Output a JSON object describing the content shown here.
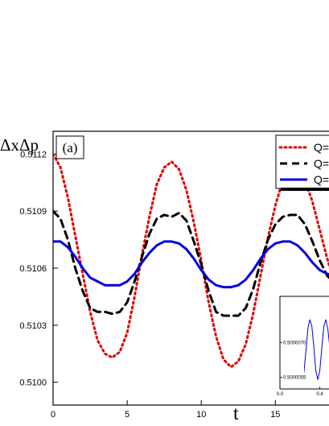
{
  "chart_data": [
    {
      "type": "line",
      "panel_label": "(a)",
      "ylabel": "ΔxΔp",
      "xlabel": "t",
      "xlim": [
        0,
        19
      ],
      "ylim": [
        0.50988,
        0.51132
      ],
      "x_ticks": [
        0,
        5,
        10,
        15
      ],
      "y_ticks": [
        0.51,
        0.5103,
        0.5106,
        0.5109,
        0.5112
      ],
      "y_tick_labels": [
        "0.5100",
        "0.5103",
        "0.5106",
        "0.5109",
        "0.5112"
      ],
      "legend_position": "top-right",
      "series": [
        {
          "name": "Q=",
          "color": "#e00000",
          "style": "dotted",
          "x": [
            0,
            0.5,
            1,
            1.5,
            2,
            2.5,
            3,
            3.5,
            4,
            4.5,
            5,
            5.5,
            6,
            6.5,
            7,
            7.5,
            8,
            8.5,
            9,
            9.5,
            10,
            10.5,
            11,
            11.5,
            12,
            12.5,
            13,
            13.5,
            14,
            14.5,
            15,
            15.5,
            16,
            16.5,
            17,
            17.5,
            18,
            18.5,
            19
          ],
          "y": [
            0.5112,
            0.51113,
            0.51097,
            0.51077,
            0.51057,
            0.51037,
            0.51022,
            0.51015,
            0.51013,
            0.51016,
            0.51026,
            0.51045,
            0.51067,
            0.51087,
            0.51104,
            0.51113,
            0.51116,
            0.51112,
            0.51101,
            0.51084,
            0.51064,
            0.51042,
            0.51024,
            0.51012,
            0.51008,
            0.51011,
            0.5102,
            0.51036,
            0.51056,
            0.51076,
            0.51093,
            0.51106,
            0.51113,
            0.51113,
            0.51106,
            0.51095,
            0.5108,
            0.51065,
            0.51052
          ]
        },
        {
          "name": "Q=",
          "color": "#000000",
          "style": "dashed",
          "x": [
            0,
            0.5,
            1,
            1.5,
            2,
            2.5,
            3,
            3.5,
            4,
            4.5,
            5,
            5.5,
            6,
            6.5,
            7,
            7.5,
            8,
            8.5,
            9,
            9.5,
            10,
            10.5,
            11,
            11.5,
            12,
            12.5,
            13,
            13.5,
            14,
            14.5,
            15,
            15.5,
            16,
            16.5,
            17,
            17.5,
            18,
            18.5,
            19
          ],
          "y": [
            0.5109,
            0.51086,
            0.51075,
            0.5106,
            0.51048,
            0.51039,
            0.51037,
            0.51037,
            0.51036,
            0.51037,
            0.51042,
            0.51053,
            0.51066,
            0.51078,
            0.51086,
            0.51088,
            0.51087,
            0.51089,
            0.51085,
            0.51074,
            0.51062,
            0.51048,
            0.51037,
            0.51035,
            0.51035,
            0.51035,
            0.51039,
            0.51049,
            0.51063,
            0.51075,
            0.51083,
            0.51087,
            0.51088,
            0.51088,
            0.51083,
            0.51074,
            0.51064,
            0.51056,
            0.51052
          ]
        },
        {
          "name": "Q=",
          "color": "#0000e0",
          "style": "solid",
          "x": [
            0,
            0.5,
            1,
            1.5,
            2,
            2.5,
            3,
            3.5,
            4,
            4.5,
            5,
            5.5,
            6,
            6.5,
            7,
            7.5,
            8,
            8.5,
            9,
            9.5,
            10,
            10.5,
            11,
            11.5,
            12,
            12.5,
            13,
            13.5,
            14,
            14.5,
            15,
            15.5,
            16,
            16.5,
            17,
            17.5,
            18,
            18.5,
            19
          ],
          "y": [
            0.51074,
            0.51074,
            0.51071,
            0.51066,
            0.5106,
            0.51055,
            0.51053,
            0.51051,
            0.51051,
            0.51051,
            0.51053,
            0.51057,
            0.51063,
            0.51068,
            0.51072,
            0.51074,
            0.51074,
            0.51073,
            0.5107,
            0.51065,
            0.51059,
            0.51054,
            0.51051,
            0.5105,
            0.5105,
            0.51051,
            0.51054,
            0.51059,
            0.51065,
            0.5107,
            0.51073,
            0.51074,
            0.51074,
            0.51072,
            0.51068,
            0.51063,
            0.51059,
            0.51057,
            0.51056
          ]
        }
      ]
    },
    {
      "type": "line",
      "role": "inset",
      "xlim": [
        0.0,
        0.5
      ],
      "ylim": [
        0.500005,
        0.500009
      ],
      "x_ticks": [
        0.0,
        0.4
      ],
      "x_tick_labels": [
        "0.0",
        "0.4"
      ],
      "y_ticks": [
        0.5000055,
        0.500007
      ],
      "y_tick_labels": [
        "0.5000055",
        "0.5000070"
      ],
      "series": [
        {
          "color": "#0000e0",
          "style": "solid",
          "x": [
            0.0,
            0.02,
            0.04,
            0.06,
            0.08,
            0.1,
            0.12,
            0.14,
            0.16,
            0.18,
            0.2,
            0.22,
            0.24,
            0.26,
            0.28,
            0.3,
            0.32,
            0.34,
            0.36,
            0.38,
            0.4,
            0.42,
            0.44,
            0.46,
            0.48,
            0.5
          ],
          "y": [
            0.5000079,
            0.5000072,
            0.5000062,
            0.5000055,
            0.5000056,
            0.5000064,
            0.5000074,
            0.500008,
            0.5000078,
            0.500007,
            0.500006,
            0.5000055,
            0.5000057,
            0.5000066,
            0.5000076,
            0.500008,
            0.5000077,
            0.5000068,
            0.5000058,
            0.5000054,
            0.5000058,
            0.5000068,
            0.5000077,
            0.500008,
            0.5000076,
            0.5000068
          ]
        }
      ]
    }
  ]
}
